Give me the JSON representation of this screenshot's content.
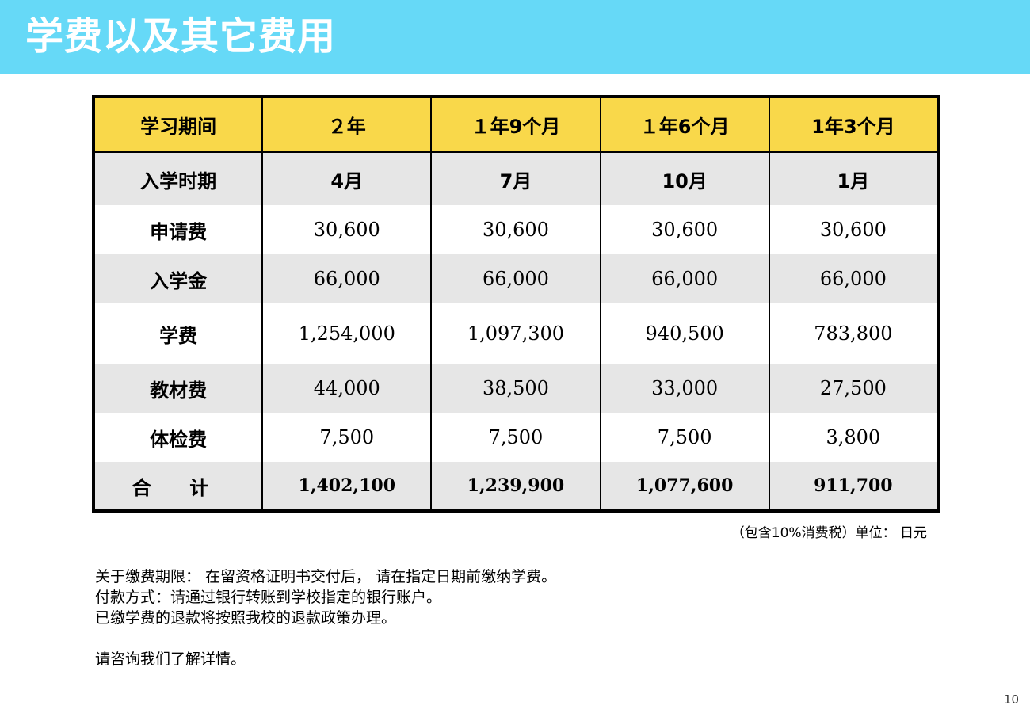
{
  "title": "学费以及其它费用",
  "table": {
    "headers": [
      "学习期间",
      "２年",
      "１年9个月",
      "１年6个月",
      "1年3个月"
    ],
    "rows": [
      {
        "label": "入学时期",
        "values": [
          "4月",
          "7月",
          "10月",
          "1月"
        ]
      },
      {
        "label": "申请费",
        "values": [
          "30,600",
          "30,600",
          "30,600",
          "30,600"
        ]
      },
      {
        "label": "入学金",
        "values": [
          "66,000",
          "66,000",
          "66,000",
          "66,000"
        ]
      },
      {
        "label": "学费",
        "values": [
          "1,254,000",
          "1,097,300",
          "940,500",
          "783,800"
        ]
      },
      {
        "label": "教材费",
        "values": [
          "44,000",
          "38,500",
          "33,000",
          "27,500"
        ]
      },
      {
        "label": "体检费",
        "values": [
          "7,500",
          "7,500",
          "7,500",
          "3,800"
        ]
      },
      {
        "label": "合 计",
        "values": [
          "1,402,100",
          "1,239,900",
          "1,077,600",
          "911,700"
        ]
      }
    ]
  },
  "unit_note": "（包含10%消费税）单位： 日元",
  "notes": [
    "关于缴费期限： 在留资格证明书交付后， 请在指定日期前缴纳学费。",
    "付款方式：请通过银行转账到学校指定的银行账户。",
    "已缴学费的退款将按照我校的退款政策办理。",
    "请咨询我们了解详情。"
  ],
  "page_number": "10",
  "colors": {
    "title_bar": "#66d9f7",
    "header_row": "#f9d84a",
    "stripe": "#e6e6e6"
  }
}
